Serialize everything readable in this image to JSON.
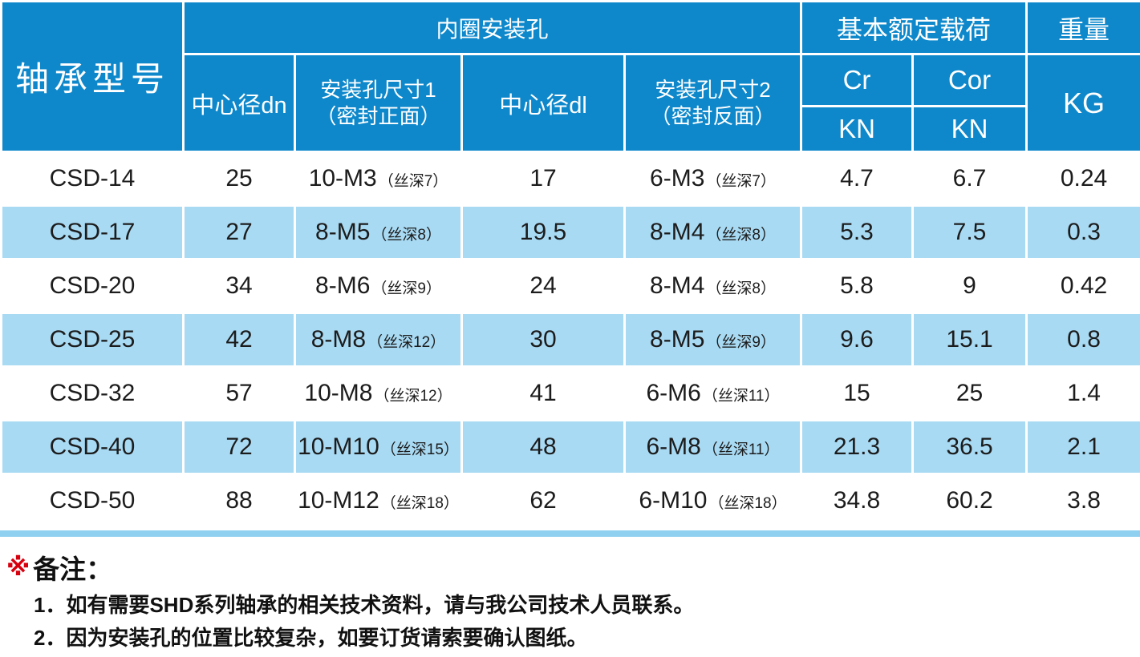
{
  "colors": {
    "header_blue": "#0e88cb",
    "row_stripe_blue": "#a8daf3",
    "bottom_band_blue": "#8fd0f1",
    "note_marker_red": "#d7000f",
    "body_text": "#1c1c1c"
  },
  "table": {
    "header": {
      "model": "轴承型号",
      "inner_ring_group": "内圈安装孔",
      "center_dn": "中心径dn",
      "hole_size1_line1": "安装孔尺寸1",
      "hole_size1_line2": "（密封正面）",
      "center_dl": "中心径dl",
      "hole_size2_line1": "安装孔尺寸2",
      "hole_size2_line2": "（密封反面）",
      "load_group": "基本额定载荷",
      "cr": "Cr",
      "cor": "Cor",
      "kn_cr": "KN",
      "kn_cor": "KN",
      "weight": "重量",
      "kg": "KG"
    },
    "rows": [
      {
        "model": "CSD-14",
        "dn": "25",
        "hole1": "10-M3",
        "hole1_note": "（丝深7）",
        "dl": "17",
        "hole2": "6-M3",
        "hole2_note": "（丝深7）",
        "cr": "4.7",
        "cor": "6.7",
        "kg": "0.24"
      },
      {
        "model": "CSD-17",
        "dn": "27",
        "hole1": "8-M5",
        "hole1_note": "（丝深8）",
        "dl": "19.5",
        "hole2": "8-M4",
        "hole2_note": "（丝深8）",
        "cr": "5.3",
        "cor": "7.5",
        "kg": "0.3"
      },
      {
        "model": "CSD-20",
        "dn": "34",
        "hole1": "8-M6",
        "hole1_note": "（丝深9）",
        "dl": "24",
        "hole2": "8-M4",
        "hole2_note": "（丝深8）",
        "cr": "5.8",
        "cor": "9",
        "kg": "0.42"
      },
      {
        "model": "CSD-25",
        "dn": "42",
        "hole1": "8-M8",
        "hole1_note": "（丝深12）",
        "dl": "30",
        "hole2": "8-M5",
        "hole2_note": "（丝深9）",
        "cr": "9.6",
        "cor": "15.1",
        "kg": "0.8"
      },
      {
        "model": "CSD-32",
        "dn": "57",
        "hole1": "10-M8",
        "hole1_note": "（丝深12）",
        "dl": "41",
        "hole2": "6-M6",
        "hole2_note": "（丝深11）",
        "cr": "15",
        "cor": "25",
        "kg": "1.4"
      },
      {
        "model": "CSD-40",
        "dn": "72",
        "hole1": "10-M10",
        "hole1_note": "（丝深15）",
        "dl": "48",
        "hole2": "6-M8",
        "hole2_note": "（丝深11）",
        "cr": "21.3",
        "cor": "36.5",
        "kg": "2.1"
      },
      {
        "model": "CSD-50",
        "dn": "88",
        "hole1": "10-M12",
        "hole1_note": "（丝深18）",
        "dl": "62",
        "hole2": "6-M10",
        "hole2_note": "（丝深18）",
        "cr": "34.8",
        "cor": "60.2",
        "kg": "3.8"
      }
    ]
  },
  "notes": {
    "marker": "※",
    "title": "备注：",
    "items": [
      "1．如有需要SHD系列轴承的相关技术资料，请与我公司技术人员联系。",
      "2．因为安装孔的位置比较复杂，如要订货请索要确认图纸。"
    ]
  }
}
